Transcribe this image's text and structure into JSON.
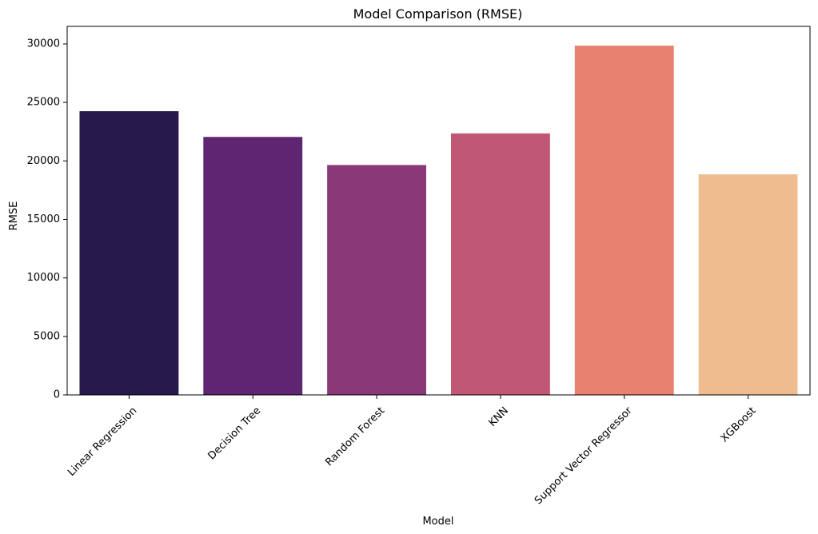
{
  "chart_data": {
    "type": "bar",
    "title": "Model Comparison (RMSE)",
    "xlabel": "Model",
    "ylabel": "RMSE",
    "categories": [
      "Linear Regression",
      "Decision Tree",
      "Random Forest",
      "KNN",
      "Support Vector Regressor",
      "XGBoost"
    ],
    "values": [
      24250,
      22050,
      19650,
      22350,
      29850,
      18850
    ],
    "colors": [
      "#261a4a",
      "#5d2572",
      "#8a3877",
      "#c05774",
      "#e6826f",
      "#efbc90"
    ],
    "ylim": [
      0,
      31500
    ],
    "yticks": [
      0,
      5000,
      10000,
      15000,
      20000,
      25000,
      30000
    ],
    "grid": false,
    "legend": "none"
  }
}
